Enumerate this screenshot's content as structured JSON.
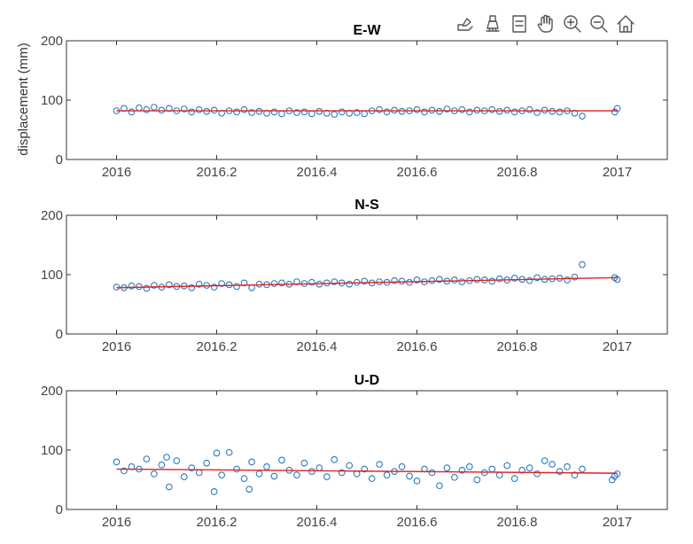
{
  "figure": {
    "ylabel": "displacement (mm)",
    "colors": {
      "marker": "#2b7bbd",
      "fit": "#e02020",
      "axis": "#333333",
      "text": "#333333",
      "tick_text": "#444444",
      "title_text": "#000000"
    }
  },
  "toolbar": {
    "icons": [
      "export-icon",
      "brush-icon",
      "legend-icon",
      "pan-hand-icon",
      "zoom-in-icon",
      "zoom-out-icon",
      "home-icon"
    ]
  },
  "chart_data": [
    {
      "type": "scatter",
      "title": "E-W",
      "xlabel": "",
      "ylabel": "displacement (mm)",
      "xlim": [
        2015.9,
        2017.1
      ],
      "ylim": [
        0,
        200
      ],
      "xticks": [
        2016,
        2016.2,
        2016.4,
        2016.6,
        2016.8,
        2017
      ],
      "xtick_labels": [
        "2016",
        "2016.2",
        "2016.4",
        "2016.6",
        "2016.8",
        "2017"
      ],
      "yticks": [
        0,
        100,
        200
      ],
      "ytick_labels": [
        "0",
        "100",
        "200"
      ],
      "grid": false,
      "series": [
        {
          "kind": "points",
          "x": [
            2016.0,
            2016.015,
            2016.03,
            2016.045,
            2016.06,
            2016.075,
            2016.09,
            2016.105,
            2016.12,
            2016.135,
            2016.15,
            2016.165,
            2016.18,
            2016.195,
            2016.21,
            2016.225,
            2016.24,
            2016.255,
            2016.27,
            2016.285,
            2016.3,
            2016.315,
            2016.33,
            2016.345,
            2016.36,
            2016.375,
            2016.39,
            2016.405,
            2016.42,
            2016.435,
            2016.45,
            2016.465,
            2016.48,
            2016.495,
            2016.51,
            2016.525,
            2016.54,
            2016.555,
            2016.57,
            2016.585,
            2016.6,
            2016.615,
            2016.63,
            2016.645,
            2016.66,
            2016.675,
            2016.69,
            2016.705,
            2016.72,
            2016.735,
            2016.75,
            2016.765,
            2016.78,
            2016.795,
            2016.81,
            2016.825,
            2016.84,
            2016.855,
            2016.87,
            2016.885,
            2016.9,
            2016.915,
            2016.93,
            2016.995,
            2017.0
          ],
          "y": [
            82,
            86,
            80,
            87,
            84,
            88,
            83,
            86,
            82,
            85,
            80,
            84,
            81,
            83,
            78,
            82,
            80,
            84,
            79,
            81,
            78,
            80,
            77,
            82,
            79,
            80,
            77,
            81,
            78,
            76,
            80,
            78,
            79,
            77,
            82,
            84,
            80,
            83,
            81,
            82,
            84,
            80,
            83,
            81,
            85,
            82,
            84,
            80,
            83,
            82,
            84,
            81,
            83,
            80,
            82,
            84,
            79,
            83,
            81,
            80,
            82,
            78,
            73,
            80,
            86
          ]
        },
        {
          "kind": "fit",
          "x": [
            2016.0,
            2017.0
          ],
          "y": [
            82,
            82
          ]
        }
      ]
    },
    {
      "type": "scatter",
      "title": "N-S",
      "xlabel": "",
      "ylabel": "",
      "xlim": [
        2015.9,
        2017.1
      ],
      "ylim": [
        0,
        200
      ],
      "xticks": [
        2016,
        2016.2,
        2016.4,
        2016.6,
        2016.8,
        2017
      ],
      "xtick_labels": [
        "2016",
        "2016.2",
        "2016.4",
        "2016.6",
        "2016.8",
        "2017"
      ],
      "yticks": [
        0,
        100,
        200
      ],
      "ytick_labels": [
        "0",
        "100",
        "200"
      ],
      "grid": false,
      "series": [
        {
          "kind": "points",
          "x": [
            2016.0,
            2016.015,
            2016.03,
            2016.045,
            2016.06,
            2016.075,
            2016.09,
            2016.105,
            2016.12,
            2016.135,
            2016.15,
            2016.165,
            2016.18,
            2016.195,
            2016.21,
            2016.225,
            2016.24,
            2016.255,
            2016.27,
            2016.285,
            2016.3,
            2016.315,
            2016.33,
            2016.345,
            2016.36,
            2016.375,
            2016.39,
            2016.405,
            2016.42,
            2016.435,
            2016.45,
            2016.465,
            2016.48,
            2016.495,
            2016.51,
            2016.525,
            2016.54,
            2016.555,
            2016.57,
            2016.585,
            2016.6,
            2016.615,
            2016.63,
            2016.645,
            2016.66,
            2016.675,
            2016.69,
            2016.705,
            2016.72,
            2016.735,
            2016.75,
            2016.765,
            2016.78,
            2016.795,
            2016.81,
            2016.825,
            2016.84,
            2016.855,
            2016.87,
            2016.885,
            2016.9,
            2016.915,
            2016.93,
            2016.995,
            2017.0
          ],
          "y": [
            79,
            78,
            81,
            80,
            77,
            82,
            79,
            83,
            80,
            81,
            78,
            84,
            82,
            79,
            85,
            83,
            80,
            86,
            78,
            84,
            83,
            85,
            86,
            84,
            88,
            85,
            87,
            84,
            86,
            88,
            86,
            84,
            87,
            89,
            86,
            88,
            87,
            90,
            89,
            87,
            91,
            88,
            90,
            92,
            89,
            91,
            88,
            90,
            92,
            91,
            89,
            93,
            91,
            94,
            92,
            90,
            95,
            92,
            93,
            94,
            91,
            96,
            117,
            95,
            92
          ]
        },
        {
          "kind": "fit",
          "x": [
            2016.0,
            2017.0
          ],
          "y": [
            78,
            95
          ]
        }
      ]
    },
    {
      "type": "scatter",
      "title": "U-D",
      "xlabel": "",
      "ylabel": "",
      "xlim": [
        2015.9,
        2017.1
      ],
      "ylim": [
        0,
        200
      ],
      "xticks": [
        2016,
        2016.2,
        2016.4,
        2016.6,
        2016.8,
        2017
      ],
      "xtick_labels": [
        "2016",
        "2016.2",
        "2016.4",
        "2016.6",
        "2016.8",
        "2017"
      ],
      "yticks": [
        0,
        100,
        200
      ],
      "ytick_labels": [
        "0",
        "100",
        "200"
      ],
      "grid": false,
      "series": [
        {
          "kind": "points",
          "x": [
            2016.0,
            2016.015,
            2016.03,
            2016.045,
            2016.06,
            2016.075,
            2016.09,
            2016.1,
            2016.105,
            2016.12,
            2016.135,
            2016.15,
            2016.165,
            2016.18,
            2016.195,
            2016.2,
            2016.21,
            2016.225,
            2016.24,
            2016.255,
            2016.265,
            2016.27,
            2016.285,
            2016.3,
            2016.315,
            2016.33,
            2016.345,
            2016.36,
            2016.375,
            2016.39,
            2016.405,
            2016.42,
            2016.435,
            2016.45,
            2016.465,
            2016.48,
            2016.495,
            2016.51,
            2016.525,
            2016.54,
            2016.555,
            2016.57,
            2016.585,
            2016.6,
            2016.615,
            2016.63,
            2016.645,
            2016.66,
            2016.675,
            2016.69,
            2016.705,
            2016.72,
            2016.735,
            2016.75,
            2016.765,
            2016.78,
            2016.795,
            2016.81,
            2016.825,
            2016.84,
            2016.855,
            2016.87,
            2016.885,
            2016.9,
            2016.915,
            2016.93,
            2016.99,
            2016.995,
            2017.0
          ],
          "y": [
            80,
            65,
            72,
            68,
            85,
            60,
            75,
            88,
            38,
            82,
            55,
            70,
            62,
            78,
            30,
            95,
            58,
            96,
            68,
            52,
            34,
            80,
            60,
            72,
            56,
            83,
            66,
            58,
            78,
            64,
            70,
            55,
            84,
            62,
            74,
            60,
            68,
            52,
            76,
            58,
            64,
            72,
            56,
            48,
            68,
            62,
            40,
            70,
            54,
            66,
            72,
            50,
            62,
            68,
            58,
            74,
            52,
            66,
            70,
            60,
            82,
            76,
            64,
            72,
            58,
            68,
            50,
            56,
            60
          ]
        },
        {
          "kind": "fit",
          "x": [
            2016.0,
            2017.0
          ],
          "y": [
            68,
            61
          ]
        }
      ]
    }
  ]
}
